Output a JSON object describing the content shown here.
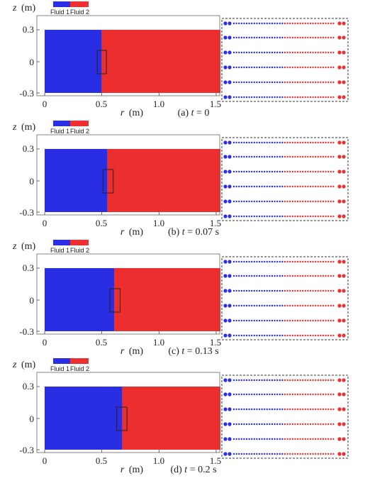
{
  "figure": {
    "colors": {
      "fluid1": "#2a2ee6",
      "fluid2": "#ee2f2f",
      "box": "#222222"
    },
    "legend": {
      "fluid1": "Fluid 1",
      "fluid2": "Fluid 2"
    },
    "axis_labels": {
      "z_var": "z",
      "z_unit": "(m)",
      "r_var": "r",
      "r_unit": "(m)"
    },
    "xticks": [
      "0",
      "0.5",
      "1.0",
      "1.5"
    ],
    "yticks": [
      "0.3",
      "0",
      "-0.3"
    ]
  },
  "chart_data": [
    {
      "type": "area",
      "x_range": [
        0,
        1.55
      ],
      "y_range": [
        -0.3,
        0.3
      ],
      "series": [
        {
          "name": "Fluid 1",
          "x_extent": [
            0,
            0.5
          ]
        },
        {
          "name": "Fluid 2",
          "x_extent": [
            0.5,
            1.55
          ]
        }
      ],
      "interface_r": 0.5,
      "zoom_box_r": [
        0.46,
        0.54
      ],
      "caption": {
        "label": "(a) ",
        "var": "t",
        "rest": " = 0"
      }
    },
    {
      "type": "area",
      "x_range": [
        0,
        1.55
      ],
      "y_range": [
        -0.3,
        0.3
      ],
      "series": [
        {
          "name": "Fluid 1",
          "x_extent": [
            0,
            0.55
          ]
        },
        {
          "name": "Fluid 2",
          "x_extent": [
            0.55,
            1.55
          ]
        }
      ],
      "interface_r": 0.55,
      "zoom_box_r": [
        0.51,
        0.6
      ],
      "caption": {
        "label": "(b) ",
        "var": "t",
        "rest": " = 0.07 s"
      }
    },
    {
      "type": "area",
      "x_range": [
        0,
        1.55
      ],
      "y_range": [
        -0.3,
        0.3
      ],
      "series": [
        {
          "name": "Fluid 1",
          "x_extent": [
            0,
            0.61
          ]
        },
        {
          "name": "Fluid 2",
          "x_extent": [
            0.61,
            1.55
          ]
        }
      ],
      "interface_r": 0.61,
      "zoom_box_r": [
        0.57,
        0.66
      ],
      "caption": {
        "label": "(c) ",
        "var": "t",
        "rest": " = 0.13 s"
      }
    },
    {
      "type": "area",
      "x_range": [
        0,
        1.55
      ],
      "y_range": [
        -0.3,
        0.3
      ],
      "series": [
        {
          "name": "Fluid 1",
          "x_extent": [
            0,
            0.68
          ]
        },
        {
          "name": "Fluid 2",
          "x_extent": [
            0.68,
            1.55
          ]
        }
      ],
      "interface_r": 0.68,
      "zoom_box_r": [
        0.63,
        0.72
      ],
      "caption": {
        "label": "(d) ",
        "var": "t",
        "rest": " = 0.2 s"
      }
    }
  ]
}
